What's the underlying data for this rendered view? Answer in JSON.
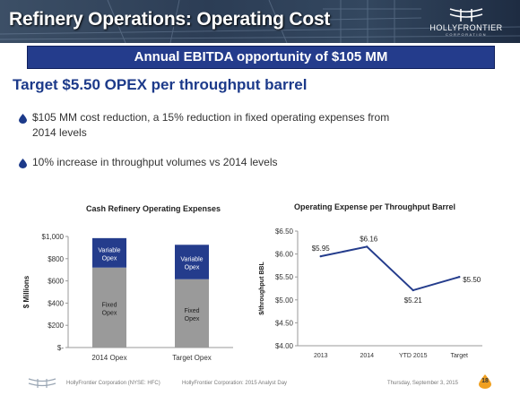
{
  "header": {
    "title": "Refinery Operations: Operating Cost",
    "logo_text": "HOLLYFRONTIER",
    "logo_subtext": "CORPORATION"
  },
  "banner": {
    "text": "Annual EBITDA opportunity of $105 MM"
  },
  "headline": "Target $5.50 OPEX per throughput barrel",
  "bullets": [
    {
      "line1": "$105 MM cost reduction, a 15% reduction in fixed operating expenses from",
      "line2": "2014 levels"
    },
    {
      "line1": "10% increase in throughput volumes vs 2014 levels"
    }
  ],
  "colors": {
    "header": "#2c3d55",
    "banner": "#243c8c",
    "headline": "#1c3a8a",
    "bullet": "#1c3a8a",
    "fixed_opex": "#9a9a9a",
    "variable_opex": "#243c8c",
    "line": "#243c8c",
    "footer_accent": "#f0a020"
  },
  "chart_data": [
    {
      "type": "bar",
      "title": "Cash Refinery Operating Expenses",
      "ylabel": "$ Millions",
      "xlabel": "",
      "categories": [
        "2014 Opex",
        "Target Opex"
      ],
      "series": [
        {
          "name": "Fixed Opex",
          "values": [
            720,
            615
          ]
        },
        {
          "name": "Variable Opex",
          "values": [
            265,
            310
          ]
        }
      ],
      "stacked": true,
      "ylim": [
        0,
        1000
      ],
      "yticks": [
        "$-",
        "$200",
        "$400",
        "$600",
        "$800",
        "$1,000"
      ],
      "segment_labels": [
        {
          "fixed": [
            "Fixed",
            "Opex"
          ],
          "variable": [
            "Variable",
            "Opex"
          ]
        },
        {
          "fixed": [
            "Fixed",
            "Opex"
          ],
          "variable": [
            "Variable",
            "Opex"
          ]
        }
      ]
    },
    {
      "type": "line",
      "title": "Operating Expense per Throughput Barrel",
      "ylabel": "$/throughput BBL",
      "xlabel": "",
      "categories": [
        "2013",
        "2014",
        "YTD 2015",
        "Target"
      ],
      "values": [
        5.95,
        6.16,
        5.21,
        5.5
      ],
      "data_labels": [
        "$5.95",
        "$6.16",
        "$5.21",
        "$5.50"
      ],
      "ylim": [
        4.0,
        6.5
      ],
      "yticks": [
        "$4.00",
        "$4.50",
        "$5.00",
        "$5.50",
        "$6.00",
        "$6.50"
      ],
      "grid": false
    }
  ],
  "footer": {
    "company": "HollyFrontier Corporation (NYSE: HFC)",
    "event": "HollyFrontier Corporation: 2015 Analyst Day",
    "date": "Thursday, September 3, 2015",
    "page": "18"
  }
}
